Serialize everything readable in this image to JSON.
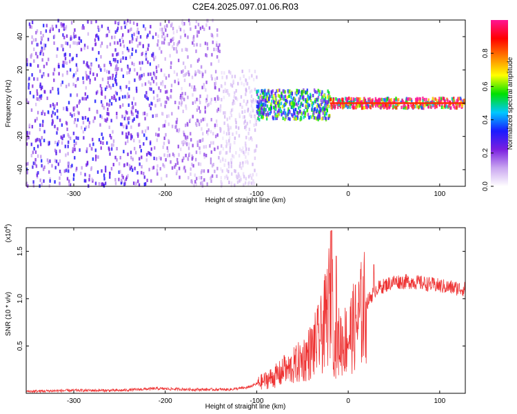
{
  "title": "C2E4.2025.097.01.06.R03",
  "chart_data": [
    {
      "type": "heatmap",
      "name": "spectrogram",
      "xlabel": "Height of straight line (km)",
      "ylabel": "Frequency (Hz)",
      "xlim": [
        -352,
        128
      ],
      "ylim": [
        -50,
        50
      ],
      "xticks": [
        -300,
        -200,
        -100,
        0,
        100
      ],
      "yticks": [
        -40,
        -20,
        0,
        20,
        40
      ],
      "colorbar": {
        "label": "Normalized spectral amplitude",
        "range": [
          0,
          1
        ],
        "ticks": [
          0.0,
          0.2,
          0.4,
          0.6,
          0.8
        ],
        "tick_labels": [
          "0.0",
          "0.2",
          "0.4",
          "0.6",
          "0.8"
        ],
        "colormap": [
          "#ffffff",
          "#c9a6f0",
          "#7a1fe0",
          "#1a1aff",
          "#00c8ff",
          "#00e000",
          "#ffff00",
          "#ff8000",
          "#ff0000",
          "#ff1493"
        ]
      },
      "regions": [
        {
          "x": [
            -352,
            -212
          ],
          "f": [
            -50,
            50
          ],
          "level": 0.2,
          "note": "broadband scattered energy"
        },
        {
          "x": [
            -212,
            -140
          ],
          "f": [
            -50,
            50
          ],
          "level": 0.12,
          "note": "broadband scattered energy"
        },
        {
          "x": [
            -140,
            -100
          ],
          "f": [
            -50,
            20
          ],
          "level": 0.06,
          "note": "sparse"
        },
        {
          "x": [
            -100,
            -20
          ],
          "f": [
            -10,
            8
          ],
          "level": 0.4,
          "note": "band around 0 Hz"
        },
        {
          "x": [
            -20,
            128
          ],
          "f": [
            -3,
            3
          ],
          "level": 0.85,
          "note": "narrow strong line at 0 Hz"
        }
      ]
    },
    {
      "type": "line",
      "name": "snr",
      "xlabel": "Height of straight line (km)",
      "ylabel": "SNR (10 * v/v)",
      "scale_label": "(x10",
      "scale_exponent": "4",
      "xlim": [
        -352,
        128
      ],
      "ylim": [
        0,
        1.75
      ],
      "xticks": [
        -300,
        -200,
        -100,
        0,
        100
      ],
      "yticks": [
        0.5,
        1.0,
        1.5
      ],
      "ytick_labels": [
        "0.5",
        "1.0",
        "1.5"
      ],
      "series_color": "#ee3333",
      "envelope": [
        {
          "x": -352,
          "y": 0.02
        },
        {
          "x": -300,
          "y": 0.03
        },
        {
          "x": -250,
          "y": 0.03
        },
        {
          "x": -210,
          "y": 0.05
        },
        {
          "x": -170,
          "y": 0.04
        },
        {
          "x": -130,
          "y": 0.04
        },
        {
          "x": -110,
          "y": 0.06
        },
        {
          "x": -95,
          "y": 0.12
        },
        {
          "x": -80,
          "y": 0.18
        },
        {
          "x": -65,
          "y": 0.25
        },
        {
          "x": -50,
          "y": 0.35
        },
        {
          "x": -40,
          "y": 0.45
        },
        {
          "x": -30,
          "y": 0.6
        },
        {
          "x": -25,
          "y": 0.75
        },
        {
          "x": -18,
          "y": 1.1
        },
        {
          "x": -15,
          "y": 0.5
        },
        {
          "x": -10,
          "y": 0.55
        },
        {
          "x": -5,
          "y": 0.55
        },
        {
          "x": 0,
          "y": 0.6
        },
        {
          "x": 10,
          "y": 0.75
        },
        {
          "x": 20,
          "y": 0.95
        },
        {
          "x": 30,
          "y": 1.1
        },
        {
          "x": 50,
          "y": 1.18
        },
        {
          "x": 70,
          "y": 1.18
        },
        {
          "x": 90,
          "y": 1.15
        },
        {
          "x": 110,
          "y": 1.12
        },
        {
          "x": 128,
          "y": 1.1
        }
      ],
      "peaks": [
        {
          "x": -18,
          "y": 1.72
        },
        {
          "x": -13,
          "y": 1.45
        },
        {
          "x": -70,
          "y": 0.4
        },
        {
          "x": 28,
          "y": 1.36
        }
      ]
    }
  ]
}
